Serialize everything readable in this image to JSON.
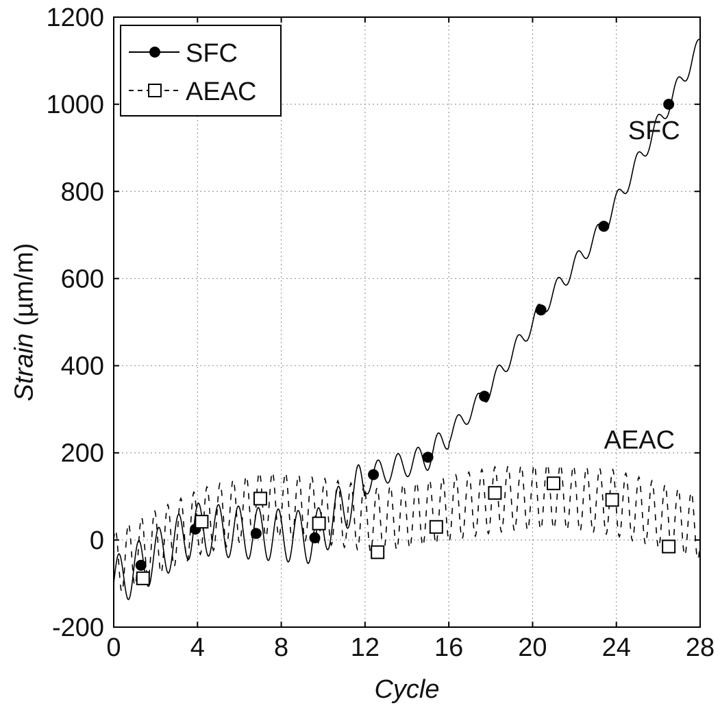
{
  "chart_data": {
    "type": "line",
    "xlabel": "Cycle",
    "ylabel_italic": "Strain",
    "ylabel_unit": " (µm/m)",
    "xlim": [
      0,
      28
    ],
    "ylim": [
      -200,
      1200
    ],
    "grid": true,
    "x_ticks": [
      "0",
      "4",
      "8",
      "12",
      "16",
      "20",
      "24",
      "28"
    ],
    "y_ticks": [
      "-200",
      "0",
      "200",
      "400",
      "600",
      "800",
      "1000",
      "1200"
    ],
    "legend": {
      "placement": "top-left",
      "entries": [
        {
          "label": "SFC",
          "marker": "filled-circle",
          "line": "solid"
        },
        {
          "label": "AEAC",
          "marker": "open-square",
          "line": "dashed"
        }
      ]
    },
    "annotations": [
      {
        "text": "SFC",
        "x": 25.8,
        "y": 920
      },
      {
        "text": "AEAC",
        "x": 25.1,
        "y": 210
      }
    ],
    "series": [
      {
        "name": "SFC",
        "style": "solid",
        "marker": "filled-circle",
        "color": "#000000",
        "markers": [
          {
            "x": 1.3,
            "y": -58
          },
          {
            "x": 3.9,
            "y": 25
          },
          {
            "x": 6.8,
            "y": 15
          },
          {
            "x": 9.6,
            "y": 5
          },
          {
            "x": 12.4,
            "y": 150
          },
          {
            "x": 15.0,
            "y": 190
          },
          {
            "x": 17.7,
            "y": 330
          },
          {
            "x": 20.4,
            "y": 528
          },
          {
            "x": 23.4,
            "y": 720
          },
          {
            "x": 26.5,
            "y": 1000
          }
        ]
      },
      {
        "name": "AEAC",
        "style": "dashed",
        "marker": "open-square",
        "color": "#000000",
        "markers": [
          {
            "x": 1.4,
            "y": -88
          },
          {
            "x": 4.2,
            "y": 42
          },
          {
            "x": 7.0,
            "y": 95
          },
          {
            "x": 9.8,
            "y": 38
          },
          {
            "x": 12.6,
            "y": -28
          },
          {
            "x": 15.4,
            "y": 30
          },
          {
            "x": 18.2,
            "y": 108
          },
          {
            "x": 21.0,
            "y": 130
          },
          {
            "x": 23.8,
            "y": 92
          },
          {
            "x": 26.5,
            "y": -15
          }
        ]
      }
    ]
  }
}
